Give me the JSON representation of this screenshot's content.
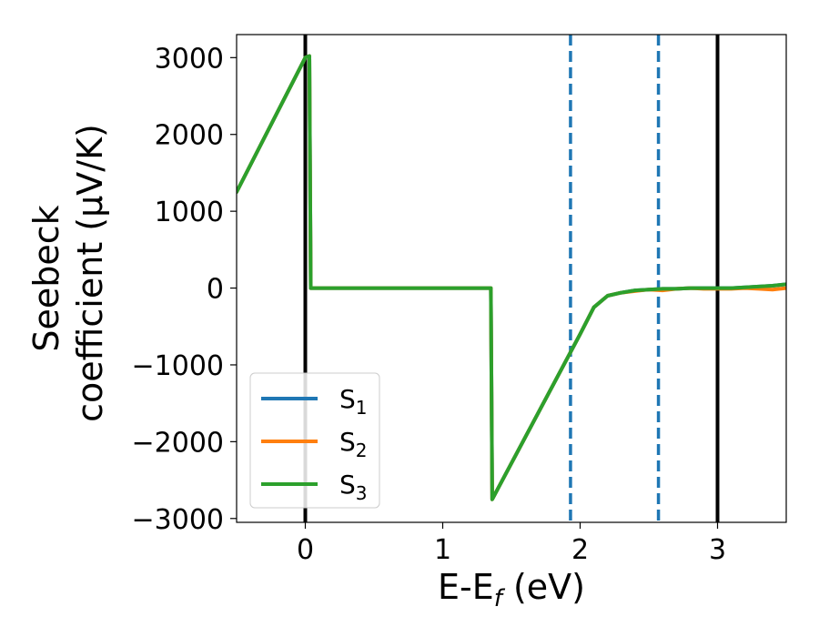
{
  "chart_data": {
    "type": "line",
    "xlabel": "E-E",
    "xlabel_sub": "f",
    "xlabel_unit": " (eV)",
    "ylabel_line1": "Seebeck",
    "ylabel_line2": "coefficient  (μV/K)",
    "xlim": [
      -0.5,
      3.5
    ],
    "ylim": [
      -3050,
      3300
    ],
    "xticks": [
      0,
      1,
      2,
      3
    ],
    "xtick_labels": [
      "0",
      "1",
      "2",
      "3"
    ],
    "yticks": [
      -3000,
      -2000,
      -1000,
      0,
      1000,
      2000,
      3000
    ],
    "ytick_labels": [
      "−3000",
      "−2000",
      "−1000",
      "0",
      "1000",
      "2000",
      "3000"
    ],
    "grid": false,
    "legend_position": "lower-left",
    "vlines": [
      {
        "x": 0,
        "style": "solid",
        "color": "#000000"
      },
      {
        "x": 3.0,
        "style": "solid",
        "color": "#000000"
      },
      {
        "x": 1.93,
        "style": "dashed",
        "color": "#1f77b4"
      },
      {
        "x": 2.57,
        "style": "dashed",
        "color": "#1f77b4"
      }
    ],
    "series": [
      {
        "name": "S",
        "sub": "1",
        "color": "#1f77b4",
        "x": [
          -0.5,
          0.0,
          0.03,
          0.04,
          1.35,
          1.36,
          2.0,
          2.1,
          2.2,
          2.3,
          2.4,
          2.5,
          2.6,
          2.7,
          2.8,
          2.9,
          3.0,
          3.1,
          3.2,
          3.3,
          3.4,
          3.5
        ],
        "y": [
          1250,
          3000,
          3020,
          0,
          0,
          -2750,
          -600,
          -250,
          -100,
          -60,
          -30,
          -20,
          -10,
          -10,
          0,
          0,
          0,
          0,
          10,
          20,
          30,
          50
        ]
      },
      {
        "name": "S",
        "sub": "2",
        "color": "#ff7f0e",
        "x": [
          -0.5,
          0.0,
          0.03,
          0.04,
          1.35,
          1.36,
          2.0,
          2.1,
          2.2,
          2.3,
          2.4,
          2.5,
          2.6,
          2.7,
          2.8,
          2.9,
          3.0,
          3.1,
          3.2,
          3.3,
          3.4,
          3.5
        ],
        "y": [
          1250,
          3000,
          3020,
          0,
          0,
          -2750,
          -600,
          -250,
          -100,
          -60,
          -40,
          -20,
          -30,
          -10,
          0,
          -10,
          -10,
          -10,
          0,
          -10,
          -20,
          0
        ]
      },
      {
        "name": "S",
        "sub": "3",
        "color": "#2ca02c",
        "x": [
          -0.5,
          0.0,
          0.03,
          0.04,
          1.35,
          1.36,
          2.0,
          2.1,
          2.2,
          2.3,
          2.4,
          2.5,
          2.6,
          2.7,
          2.8,
          2.9,
          3.0,
          3.1,
          3.2,
          3.3,
          3.4,
          3.5
        ],
        "y": [
          1250,
          3000,
          3020,
          0,
          0,
          -2750,
          -600,
          -250,
          -100,
          -60,
          -30,
          -20,
          -10,
          -10,
          0,
          0,
          0,
          0,
          10,
          20,
          30,
          50
        ]
      }
    ]
  }
}
